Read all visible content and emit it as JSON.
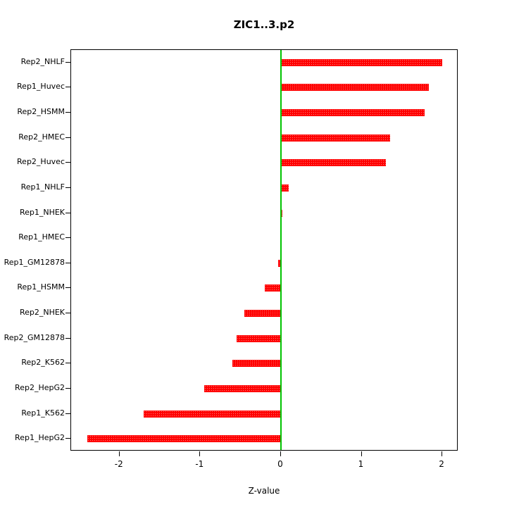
{
  "chart_data": {
    "type": "bar",
    "orientation": "horizontal",
    "title": "ZIC1..3.p2",
    "xlabel": "Z-value",
    "ylabel": "",
    "xlim": [
      -2.6,
      2.2
    ],
    "xticks": [
      -2,
      -1,
      0,
      1,
      2
    ],
    "xtick_labels": [
      "-2",
      "-1",
      "0",
      "1",
      "2"
    ],
    "categories": [
      "Rep2_NHLF",
      "Rep1_Huvec",
      "Rep2_HSMM",
      "Rep2_HMEC",
      "Rep2_Huvec",
      "Rep1_NHLF",
      "Rep1_NHEK",
      "Rep1_HMEC",
      "Rep1_GM12878",
      "Rep1_HSMM",
      "Rep2_NHEK",
      "Rep2_GM12878",
      "Rep2_K562",
      "Rep2_HepG2",
      "Rep1_K562",
      "Rep1_HepG2"
    ],
    "values": [
      2.0,
      1.83,
      1.78,
      1.35,
      1.3,
      0.1,
      0.02,
      0.0,
      -0.03,
      -0.2,
      -0.45,
      -0.55,
      -0.6,
      -0.95,
      -1.7,
      -2.4
    ],
    "bar_color": "#ff0000",
    "zero_line_color": "#00c400",
    "axis_color": "#000000",
    "grid": false,
    "legend": false
  }
}
